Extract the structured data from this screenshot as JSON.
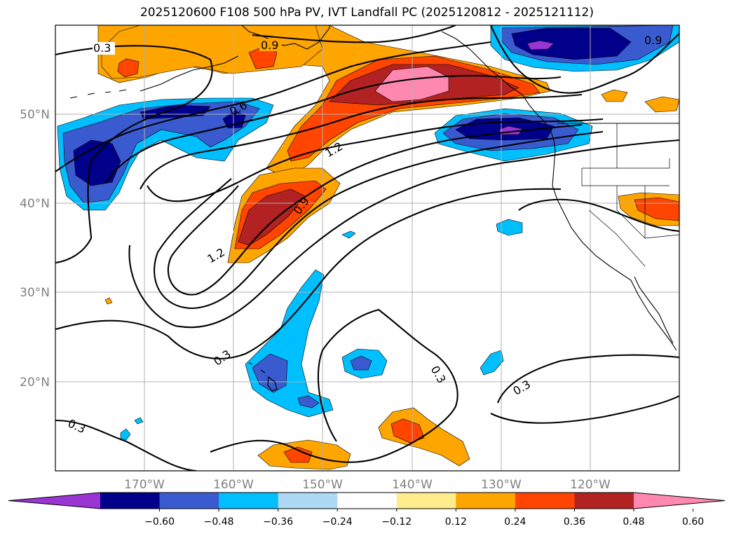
{
  "title": "2025120600 F108 500 hPa PV, IVT Landfall PC (2025120812 - 2025121112)",
  "map": {
    "projection": "cylindrical",
    "lon_range": [
      -180,
      -110
    ],
    "lat_range": [
      10,
      60
    ],
    "lon_labels": [
      "170°W",
      "160°W",
      "150°W",
      "140°W",
      "130°W",
      "120°W"
    ],
    "lat_labels": [
      "50°N",
      "40°N",
      "30°N",
      "20°N"
    ],
    "gridlines": true,
    "gridline_color": "#b0b0b0",
    "coastline_color": "#000000"
  },
  "contour_labels": [
    "0.3",
    "0.9",
    "0.6",
    "1.2",
    "0.9",
    "1.2",
    "0.9",
    "0.3",
    "0.3",
    "0.3",
    "0.3"
  ],
  "colorbar": {
    "ticks": [
      "−0.60",
      "−0.48",
      "−0.36",
      "−0.24",
      "−0.12",
      "0.12",
      "0.24",
      "0.36",
      "0.48",
      "0.60"
    ],
    "colors": [
      "#9a34d2",
      "#00008b",
      "#3a5bd0",
      "#00bfff",
      "#add8f6",
      "#ffffff",
      "#ffec8b",
      "#ffa500",
      "#ff4500",
      "#b22222",
      "#ff88b0"
    ]
  }
}
